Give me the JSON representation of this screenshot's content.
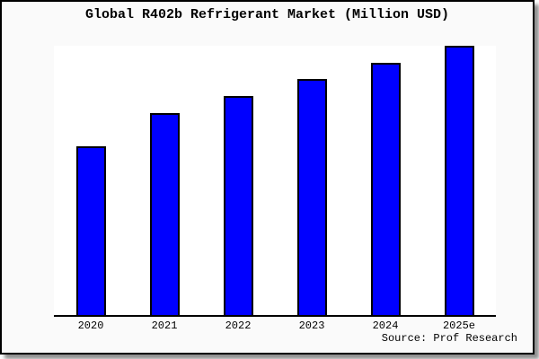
{
  "chart_data": {
    "type": "bar",
    "title": "Global R402b Refrigerant Market (Million USD)",
    "categories": [
      "2020",
      "2021",
      "2022",
      "2023",
      "2024",
      "2025e"
    ],
    "values": [
      189,
      226,
      245,
      264,
      282,
      301
    ],
    "value_note": "no y-axis ticks or data labels are rendered; values are relative bar heights estimated in pixels",
    "ylim": [
      0,
      301
    ],
    "xlabel": "",
    "ylabel": "",
    "grid": false,
    "legend": false,
    "layout": {
      "bar_color": "#0000ff",
      "bar_border_color": "#000000",
      "axis_color": "#000000",
      "plot_background": "#ffffff",
      "figure_background": "#fafafa",
      "figure_border_color": "#000000"
    }
  },
  "source": {
    "label": "Source: Prof Research"
  }
}
